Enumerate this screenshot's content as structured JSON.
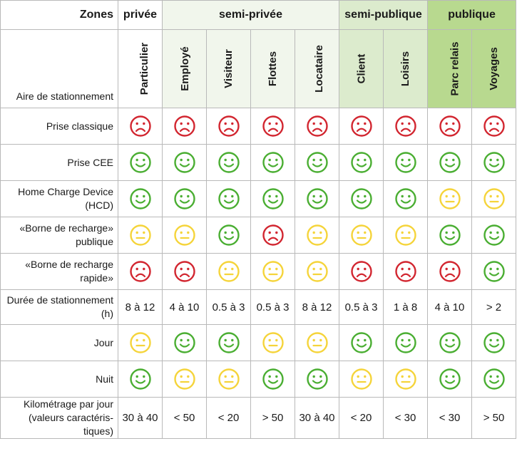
{
  "colors": {
    "happy": "#4aae32",
    "neutral": "#f5d43a",
    "sad": "#d22630",
    "grid": "#b9b9b9",
    "zone_semiprivee": "#f1f6ec",
    "zone_semipublique": "#dcebcd",
    "zone_publique": "#b8d98f"
  },
  "header": {
    "zones_label": "Zones",
    "aire_label": "Aire de stationnement",
    "zones": [
      {
        "label": "privée",
        "span": 1,
        "cls": "privee"
      },
      {
        "label": "semi-privée",
        "span": 4,
        "cls": "semiprivee"
      },
      {
        "label": "semi-publique",
        "span": 2,
        "cls": "semipublique"
      },
      {
        "label": "publique",
        "span": 2,
        "cls": "publique"
      }
    ],
    "categories": [
      {
        "label": "Particulier",
        "cls": "privee"
      },
      {
        "label": "Employé",
        "cls": "semiprivee"
      },
      {
        "label": "Visiteur",
        "cls": "semiprivee"
      },
      {
        "label": "Flottes",
        "cls": "semiprivee"
      },
      {
        "label": "Locataire",
        "cls": "semiprivee"
      },
      {
        "label": "Client",
        "cls": "semipublique"
      },
      {
        "label": "Loisirs",
        "cls": "semipublique"
      },
      {
        "label": "Parc relais",
        "cls": "publique"
      },
      {
        "label": "Voyages",
        "cls": "publique"
      }
    ]
  },
  "rows": [
    {
      "label": "Prise classique",
      "type": "icons",
      "icon_name": "smiley-icon",
      "values": [
        "sad",
        "sad",
        "sad",
        "sad",
        "sad",
        "sad",
        "sad",
        "sad",
        "sad"
      ]
    },
    {
      "label": "Prise CEE",
      "type": "icons",
      "icon_name": "smiley-icon",
      "values": [
        "happy",
        "happy",
        "happy",
        "happy",
        "happy",
        "happy",
        "happy",
        "happy",
        "happy"
      ]
    },
    {
      "label": "Home Charge Device (HCD)",
      "type": "icons",
      "icon_name": "smiley-icon",
      "values": [
        "happy",
        "happy",
        "happy",
        "happy",
        "happy",
        "happy",
        "happy",
        "neutral",
        "neutral"
      ]
    },
    {
      "label": "«Borne de recharge» publique",
      "type": "icons",
      "icon_name": "smiley-icon",
      "values": [
        "neutral",
        "neutral",
        "happy",
        "sad",
        "neutral",
        "neutral",
        "neutral",
        "happy",
        "happy"
      ]
    },
    {
      "label": "«Borne de recharge rapide»",
      "type": "icons",
      "icon_name": "smiley-icon",
      "values": [
        "sad",
        "sad",
        "neutral",
        "neutral",
        "neutral",
        "sad",
        "sad",
        "sad",
        "happy"
      ]
    },
    {
      "label": "Durée de stationnement (h)",
      "type": "text",
      "values": [
        "8 à 12",
        "4 à 10",
        "0.5 à 3",
        "0.5 à 3",
        "8 à 12",
        "0.5 à 3",
        "1 à 8",
        "4 à 10",
        "> 2"
      ]
    },
    {
      "label": "Jour",
      "type": "icons",
      "icon_name": "smiley-icon",
      "values": [
        "neutral",
        "happy",
        "happy",
        "neutral",
        "neutral",
        "happy",
        "happy",
        "happy",
        "happy"
      ]
    },
    {
      "label": "Nuit",
      "type": "icons",
      "icon_name": "smiley-icon",
      "values": [
        "happy",
        "neutral",
        "neutral",
        "happy",
        "happy",
        "neutral",
        "neutral",
        "happy",
        "happy"
      ]
    },
    {
      "label": "Kilométrage par jour (valeurs caractéris-tiques)",
      "type": "text",
      "values": [
        "30 à 40",
        "< 50",
        "< 20",
        "> 50",
        "30 à 40",
        "< 20",
        "< 30",
        "< 30",
        "> 50"
      ]
    }
  ]
}
